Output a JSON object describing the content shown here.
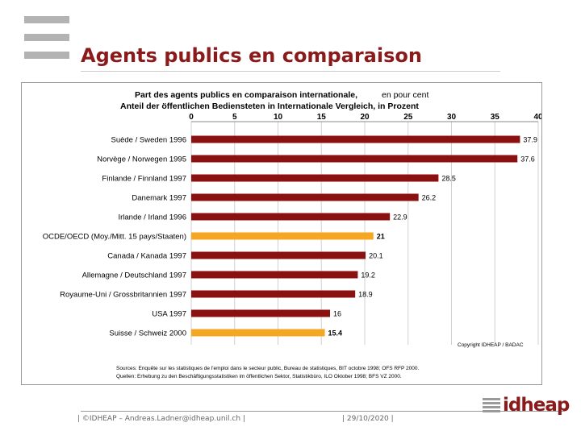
{
  "slide": {
    "title": "Agents publics en comparaison",
    "footer_left": "| ©IDHEAP – Andreas.Ladner@idheap.unil.ch |",
    "footer_date": "| 29/10/2020 |",
    "brand": "idheap"
  },
  "colors": {
    "title": "#8b1a1a",
    "bar_country": "#8b1010",
    "bar_highlight": "#f5a623",
    "gridline": "#d0d0d0"
  },
  "chart_data": {
    "type": "bar",
    "orientation": "horizontal",
    "title_fr": "Part des agents publics en comparaison internationale,",
    "title_fr_suffix": "en pour cent",
    "title_de": "Anteil der öffentlichen Bediensteten in Internationale Vergleich, in Prozent",
    "xlim": [
      0,
      40
    ],
    "xticks": [
      "0",
      "5",
      "10",
      "15",
      "20",
      "25",
      "30",
      "35",
      "40"
    ],
    "grid": true,
    "bars": [
      {
        "category": "Suède / Sweden 1996",
        "value": 37.9,
        "label": "37.9",
        "highlight": false
      },
      {
        "category": "Norvège / Norwegen 1995",
        "value": 37.6,
        "label": "37.6",
        "highlight": false
      },
      {
        "category": "Finlande / Finnland 1997",
        "value": 28.5,
        "label": "28.5",
        "highlight": false
      },
      {
        "category": "Danemark 1997",
        "value": 26.2,
        "label": "26.2",
        "highlight": false
      },
      {
        "category": "Irlande / Irland 1996",
        "value": 22.9,
        "label": "22.9",
        "highlight": false
      },
      {
        "category": "OCDE/OECD (Moy./Mitt. 15 pays/Staaten)",
        "value": 21,
        "label": "21",
        "highlight": true
      },
      {
        "category": "Canada / Kanada 1997",
        "value": 20.1,
        "label": "20.1",
        "highlight": false
      },
      {
        "category": "Allemagne / Deutschland 1997",
        "value": 19.2,
        "label": "19.2",
        "highlight": false
      },
      {
        "category": "Royaume-Uni / Grossbritannien 1997",
        "value": 18.9,
        "label": "18.9",
        "highlight": false
      },
      {
        "category": "USA 1997",
        "value": 16,
        "label": "16",
        "highlight": false
      },
      {
        "category": "Suisse / Schweiz 2000",
        "value": 15.4,
        "label": "15.4",
        "highlight": true
      }
    ],
    "copyright": "Copyright IDHEAP / BADAC",
    "source_fr": "Sources: Enquête sur les statistiques de l'emploi dans le secteur public, Bureau de statistiques, BIT octobre 1998; OFS RFP 2000.",
    "source_de": "Quellen: Erhebung zu den Beschäftigungsstatistiken im öffentlichen Sektor, Statistikbüro, ILO Oktober 1998; BFS VZ 2000."
  }
}
